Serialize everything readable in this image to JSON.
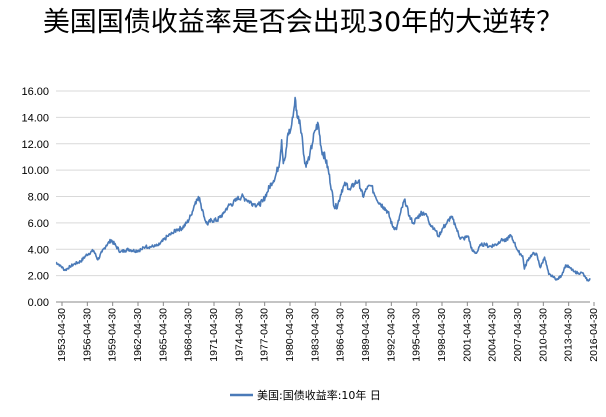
{
  "chart_data": {
    "type": "line",
    "title": "美国国债收益率是否会出现30年的大逆转？",
    "xlabel": "",
    "ylabel": "",
    "ylim": [
      0,
      16
    ],
    "yticks": [
      "0.00",
      "2.00",
      "4.00",
      "6.00",
      "8.00",
      "10.00",
      "12.00",
      "14.00",
      "16.00"
    ],
    "xticks": [
      "1953-04-30",
      "1956-04-30",
      "1959-04-30",
      "1962-04-30",
      "1965-04-30",
      "1968-04-30",
      "1971-04-30",
      "1974-04-30",
      "1977-04-30",
      "1980-04-30",
      "1983-04-30",
      "1986-04-30",
      "1989-04-30",
      "1992-04-30",
      "1995-04-30",
      "1998-04-30",
      "2001-04-30",
      "2004-04-30",
      "2007-04-30",
      "2010-04-30",
      "2013-04-30",
      "2016-04-30"
    ],
    "xlim": [
      1953.33,
      2016.8
    ],
    "legend": "bottom",
    "color": "#4a7ab8",
    "series": [
      {
        "name": "美国:国债收益率:10年 日",
        "x": [
          1953.33,
          1953.8,
          1954.4,
          1955.0,
          1955.6,
          1956.3,
          1957.0,
          1957.8,
          1958.3,
          1958.8,
          1959.3,
          1959.9,
          1960.5,
          1961.0,
          1961.5,
          1962.0,
          1962.5,
          1963.0,
          1963.5,
          1964.0,
          1964.5,
          1965.0,
          1965.5,
          1966.0,
          1966.6,
          1967.2,
          1967.7,
          1968.3,
          1968.9,
          1969.4,
          1969.9,
          1970.4,
          1970.9,
          1971.3,
          1971.8,
          1972.5,
          1973.2,
          1973.8,
          1974.4,
          1974.9,
          1975.4,
          1975.9,
          1976.4,
          1976.9,
          1977.4,
          1977.9,
          1978.4,
          1978.9,
          1979.4,
          1979.9,
          1980.15,
          1980.35,
          1980.6,
          1980.9,
          1981.2,
          1981.5,
          1981.75,
          1982.0,
          1982.3,
          1982.6,
          1982.9,
          1983.2,
          1983.5,
          1983.8,
          1984.1,
          1984.5,
          1984.9,
          1985.3,
          1985.7,
          1986.1,
          1986.4,
          1986.8,
          1987.3,
          1987.8,
          1988.3,
          1988.8,
          1989.3,
          1989.8,
          1990.3,
          1990.8,
          1991.3,
          1991.8,
          1992.3,
          1992.8,
          1993.3,
          1993.8,
          1994.3,
          1994.8,
          1995.3,
          1995.8,
          1996.3,
          1996.8,
          1997.3,
          1997.8,
          1998.3,
          1998.8,
          1999.3,
          1999.8,
          2000.3,
          2000.8,
          2001.3,
          2001.8,
          2002.3,
          2002.8,
          2003.3,
          2003.8,
          2004.3,
          2004.8,
          2005.3,
          2005.8,
          2006.3,
          2006.8,
          2007.3,
          2007.8,
          2008.3,
          2008.8,
          2009.0,
          2009.4,
          2009.9,
          2010.4,
          2010.9,
          2011.4,
          2011.9,
          2012.4,
          2012.9,
          2013.4,
          2013.9,
          2014.4,
          2014.9,
          2015.4,
          2015.9,
          2016.3,
          2016.6,
          2016.8
        ],
        "values": [
          3.0,
          2.8,
          2.4,
          2.7,
          2.9,
          3.1,
          3.6,
          3.9,
          3.2,
          3.8,
          4.3,
          4.7,
          4.2,
          3.8,
          3.9,
          4.0,
          3.9,
          3.9,
          4.0,
          4.2,
          4.2,
          4.2,
          4.3,
          4.6,
          5.0,
          5.2,
          5.5,
          5.6,
          6.0,
          6.6,
          7.6,
          7.9,
          6.5,
          5.9,
          6.2,
          6.2,
          6.7,
          7.3,
          7.5,
          7.8,
          8.0,
          7.8,
          7.6,
          7.4,
          7.4,
          7.6,
          8.3,
          9.0,
          9.5,
          10.6,
          12.3,
          10.5,
          11.0,
          12.8,
          13.0,
          14.0,
          15.5,
          14.0,
          13.8,
          12.5,
          10.5,
          10.5,
          11.2,
          12.0,
          13.0,
          13.5,
          11.5,
          11.0,
          10.0,
          8.5,
          7.2,
          7.3,
          8.5,
          9.0,
          8.5,
          9.0,
          9.2,
          8.0,
          8.6,
          8.8,
          8.0,
          7.5,
          7.2,
          6.8,
          5.8,
          5.5,
          6.8,
          7.8,
          6.5,
          6.0,
          6.4,
          6.8,
          6.7,
          5.9,
          5.6,
          5.0,
          5.6,
          6.0,
          6.5,
          5.8,
          4.9,
          4.8,
          5.0,
          3.9,
          3.7,
          4.3,
          4.4,
          4.2,
          4.3,
          4.4,
          4.8,
          4.6,
          5.1,
          4.5,
          3.8,
          3.5,
          2.5,
          3.2,
          3.6,
          3.7,
          2.6,
          3.4,
          2.1,
          1.9,
          1.7,
          2.0,
          2.8,
          2.6,
          2.3,
          2.2,
          2.2,
          1.8,
          1.6,
          1.8
        ]
      }
    ]
  }
}
